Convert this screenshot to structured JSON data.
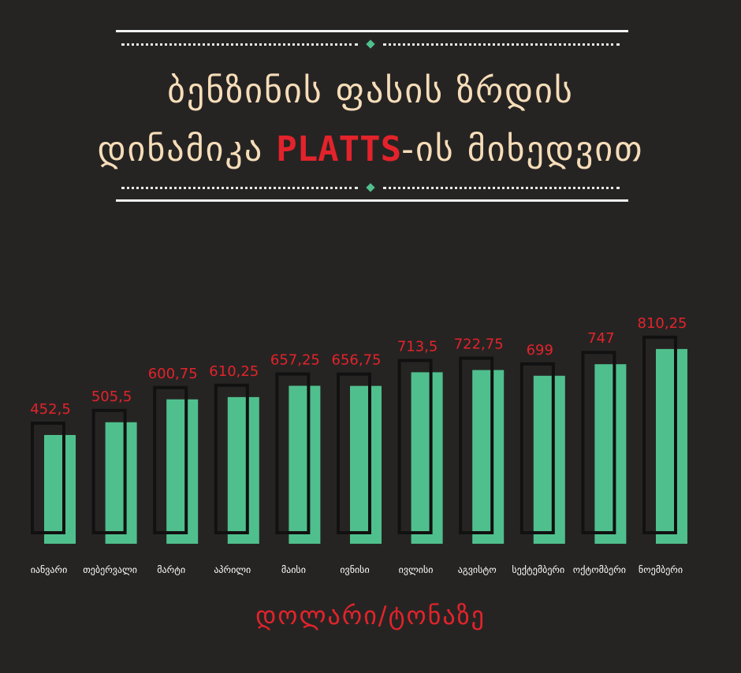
{
  "title": {
    "line1": "ბენზინის ფასის ზრდის",
    "line2_prefix": "დინამიკა ",
    "line2_highlight": "PLATTS",
    "line2_suffix": "-ის მიხედვით"
  },
  "colors": {
    "background": "#262423",
    "bar": "#4fc08d",
    "outline": "#111111",
    "value_label": "#e3232b",
    "title": "#f6ddb9",
    "highlight": "#e3232b"
  },
  "chart_data": {
    "type": "bar",
    "categories": [
      "იანვარი",
      "თებერვალი",
      "მარტი",
      "აპრილი",
      "მაისი",
      "ივნისი",
      "ივლისი",
      "აგვისტო",
      "სექტემბერი",
      "ოქტომბერი",
      "ნოემბერი"
    ],
    "values": [
      452.5,
      505.5,
      600.75,
      610.25,
      657.25,
      656.75,
      713.5,
      722.75,
      699,
      747,
      810.25
    ],
    "value_labels": [
      "452,5",
      "505,5",
      "600,75",
      "610,25",
      "657,25",
      "656,75",
      "713,5",
      "722,75",
      "699",
      "747",
      "810,25"
    ],
    "unit": "დოლარი/ტონაზე",
    "grid": false,
    "legend": "none"
  }
}
